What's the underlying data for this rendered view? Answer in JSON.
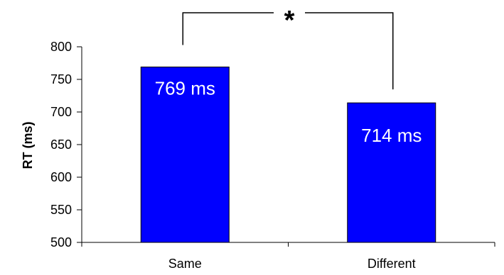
{
  "chart_data": {
    "type": "bar",
    "categories": [
      "Same",
      "Different"
    ],
    "values": [
      769,
      714
    ],
    "data_labels": [
      "769 ms",
      "714 ms"
    ],
    "ylabel": "RT (ms)",
    "xlabel": "",
    "ylim": [
      500,
      800
    ],
    "yticks": [
      500,
      550,
      600,
      650,
      700,
      750,
      800
    ],
    "grid": false,
    "bar_color": "#0000FF",
    "bar_edge_color": "#000000",
    "significance": {
      "marker": "*",
      "between": [
        "Same",
        "Different"
      ]
    }
  }
}
